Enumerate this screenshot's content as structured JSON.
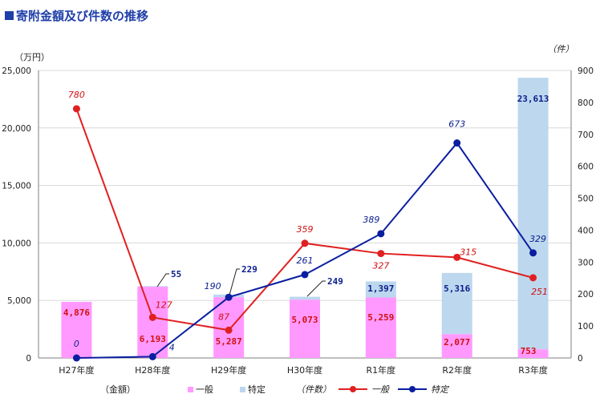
{
  "title_prefix": "■",
  "title": "寄附金額及び件数の推移",
  "colors": {
    "title": "#1F3FA8",
    "bar_general": "#FF99FF",
    "bar_specific": "#BDD7EE",
    "line_general": "#E02020",
    "line_specific": "#0A1EA0",
    "label_general": "#D01010",
    "label_specific": "#0A1E8C"
  },
  "chart_data": {
    "type": "bar",
    "title": "寄附金額及び件数の推移",
    "categories": [
      "H27年度",
      "H28年度",
      "H29年度",
      "H30年度",
      "R1年度",
      "R2年度",
      "R3年度"
    ],
    "left_axis": {
      "unit": "（万円）",
      "label": "（金額）",
      "ylim": [
        0,
        25000
      ],
      "ticks": [
        0,
        5000,
        10000,
        15000,
        20000,
        25000
      ],
      "tick_labels": [
        "0",
        "5,000",
        "10,000",
        "15,000",
        "20,000",
        "25,000"
      ]
    },
    "right_axis": {
      "unit": "（件）",
      "label": "（件数）",
      "ylim": [
        0,
        900
      ],
      "ticks": [
        0,
        100,
        200,
        300,
        400,
        500,
        600,
        700,
        800,
        900
      ],
      "tick_labels": [
        "0",
        "100",
        "200",
        "300",
        "400",
        "500",
        "600",
        "700",
        "800",
        "900"
      ]
    },
    "bar_series": [
      {
        "name": "一般",
        "values": [
          4876,
          6193,
          5287,
          5073,
          5259,
          2077,
          753
        ],
        "labels": [
          "4,876",
          "6,193",
          "5,287",
          "5,073",
          "5,259",
          "2,077",
          "753"
        ]
      },
      {
        "name": "特定",
        "values": [
          0,
          55,
          229,
          249,
          1397,
          5316,
          23613
        ],
        "labels": [
          "",
          "55",
          "229",
          "249",
          "1,397",
          "5,316",
          "23,613"
        ]
      }
    ],
    "line_series": [
      {
        "name": "一般",
        "values": [
          780,
          127,
          87,
          359,
          327,
          315,
          251
        ],
        "labels": [
          "780",
          "127",
          "87",
          "359",
          "327",
          "315",
          "251"
        ]
      },
      {
        "name": "特定",
        "values": [
          0,
          4,
          190,
          261,
          389,
          673,
          329
        ],
        "labels": [
          "0",
          "4",
          "190",
          "261",
          "389",
          "673",
          "329"
        ]
      }
    ],
    "legend": [
      "一般",
      "特定",
      "一般",
      "特定"
    ]
  }
}
